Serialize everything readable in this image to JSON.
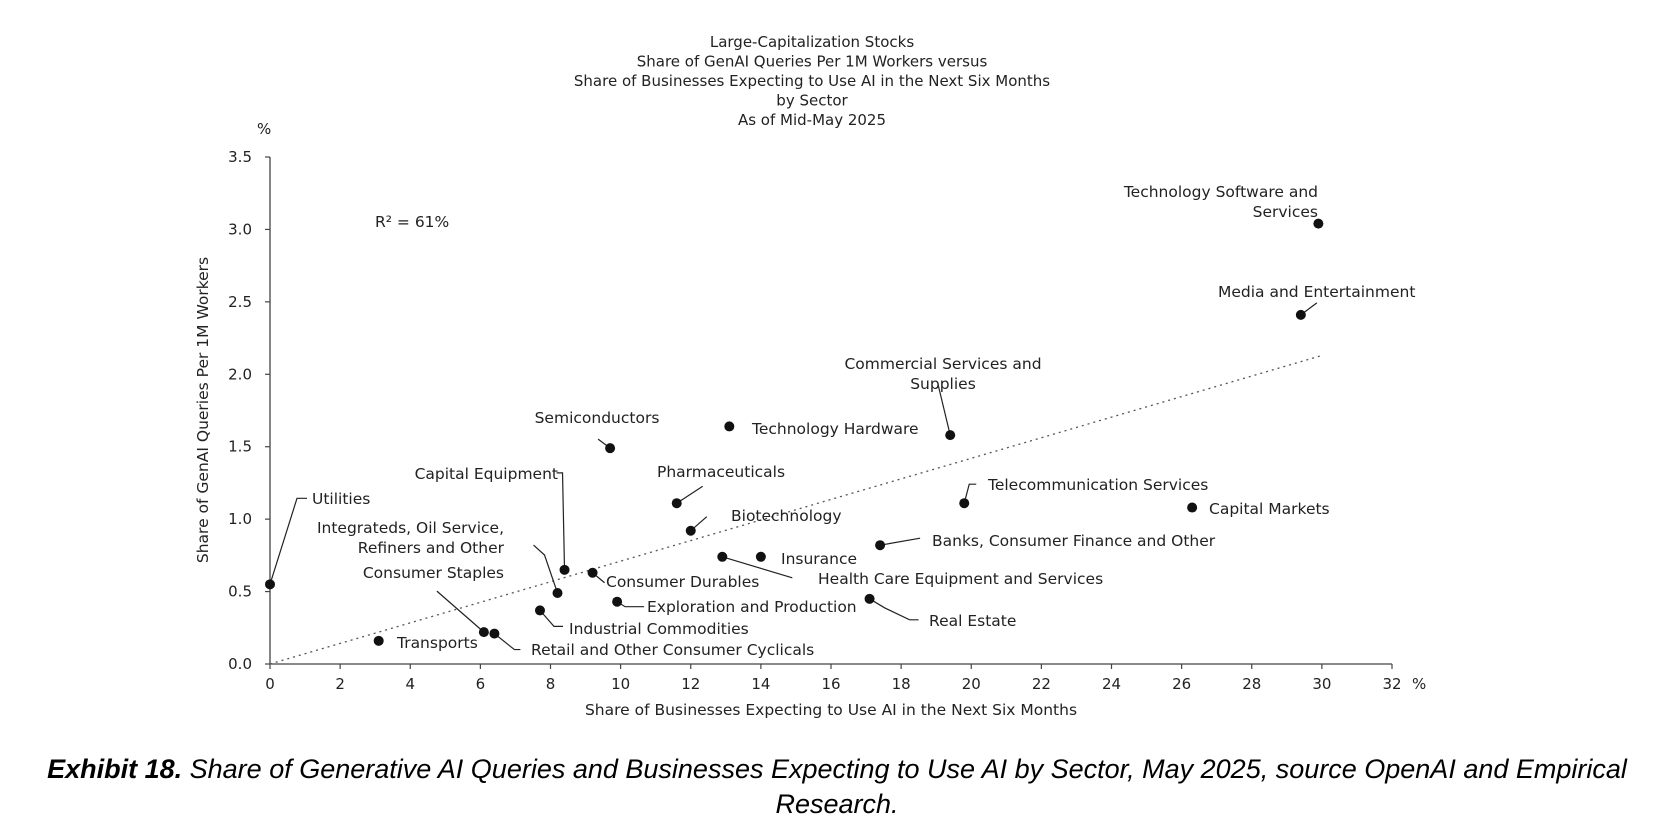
{
  "chart_data": {
    "type": "scatter",
    "title_lines": [
      "Large-Capitalization Stocks",
      "Share of GenAI Queries Per 1M Workers versus",
      "Share of Businesses Expecting to Use AI in the Next Six Months",
      "by Sector",
      "As of Mid-May 2025"
    ],
    "xlabel": "Share of Businesses Expecting to Use AI in the Next Six Months",
    "ylabel": "Share of GenAI Queries Per 1M Workers",
    "x_unit": "%",
    "y_unit": "%",
    "xlim": [
      0,
      32
    ],
    "ylim": [
      0,
      3.5
    ],
    "x_ticks": [
      "0",
      "2",
      "4",
      "6",
      "8",
      "10",
      "12",
      "14",
      "16",
      "18",
      "20",
      "22",
      "24",
      "26",
      "28",
      "30",
      "32"
    ],
    "y_ticks": [
      "0.0",
      "0.5",
      "1.0",
      "1.5",
      "2.0",
      "2.5",
      "3.0",
      "3.5"
    ],
    "annotation": "R² = 61%",
    "trendline": {
      "style": "dotted",
      "from": [
        0,
        0
      ],
      "to": [
        30,
        2.13
      ]
    },
    "points": [
      {
        "label_lines": [
          "Technology Software and",
          "Services"
        ],
        "x": 29.9,
        "y": 3.04
      },
      {
        "label_lines": [
          "Media and Entertainment"
        ],
        "x": 29.4,
        "y": 2.41
      },
      {
        "label_lines": [
          "Commercial Services and",
          "Supplies"
        ],
        "x": 19.4,
        "y": 1.58
      },
      {
        "label_lines": [
          "Technology Hardware"
        ],
        "x": 13.1,
        "y": 1.64
      },
      {
        "label_lines": [
          "Semiconductors"
        ],
        "x": 9.7,
        "y": 1.49
      },
      {
        "label_lines": [
          "Pharmaceuticals"
        ],
        "x": 11.6,
        "y": 1.11
      },
      {
        "label_lines": [
          "Telecommunication Services"
        ],
        "x": 19.8,
        "y": 1.11
      },
      {
        "label_lines": [
          "Capital Markets"
        ],
        "x": 26.3,
        "y": 1.08
      },
      {
        "label_lines": [
          "Utilities"
        ],
        "x": 0.0,
        "y": 0.55
      },
      {
        "label_lines": [
          "Capital Equipment"
        ],
        "x": 8.4,
        "y": 0.65
      },
      {
        "label_lines": [
          "Biotechnology"
        ],
        "x": 12.0,
        "y": 0.92
      },
      {
        "label_lines": [
          "Banks, Consumer Finance and Other"
        ],
        "x": 17.4,
        "y": 0.82
      },
      {
        "label_lines": [
          "Insurance"
        ],
        "x": 14.0,
        "y": 0.74
      },
      {
        "label_lines": [
          "Health Care Equipment and Services"
        ],
        "x": 12.9,
        "y": 0.74
      },
      {
        "label_lines": [
          "Integrateds, Oil Service,",
          "Refiners and Other"
        ],
        "x": 8.2,
        "y": 0.49
      },
      {
        "label_lines": [
          "Consumer Durables"
        ],
        "x": 9.2,
        "y": 0.63
      },
      {
        "label_lines": [
          "Consumer Staples"
        ],
        "x": 6.1,
        "y": 0.22
      },
      {
        "label_lines": [
          "Exploration and Production"
        ],
        "x": 9.9,
        "y": 0.43
      },
      {
        "label_lines": [
          "Industrial Commodities"
        ],
        "x": 7.7,
        "y": 0.37
      },
      {
        "label_lines": [
          "Real Estate"
        ],
        "x": 17.1,
        "y": 0.45
      },
      {
        "label_lines": [
          "Transports"
        ],
        "x": 3.1,
        "y": 0.16
      },
      {
        "label_lines": [
          "Retail and Other Consumer Cyclicals"
        ],
        "x": 6.4,
        "y": 0.21
      }
    ]
  },
  "caption": {
    "bold": "Exhibit 18.",
    "text": " Share of Generative AI Queries and Businesses Expecting to Use AI by Sector, May 2025, source OpenAI and Empirical Research."
  }
}
